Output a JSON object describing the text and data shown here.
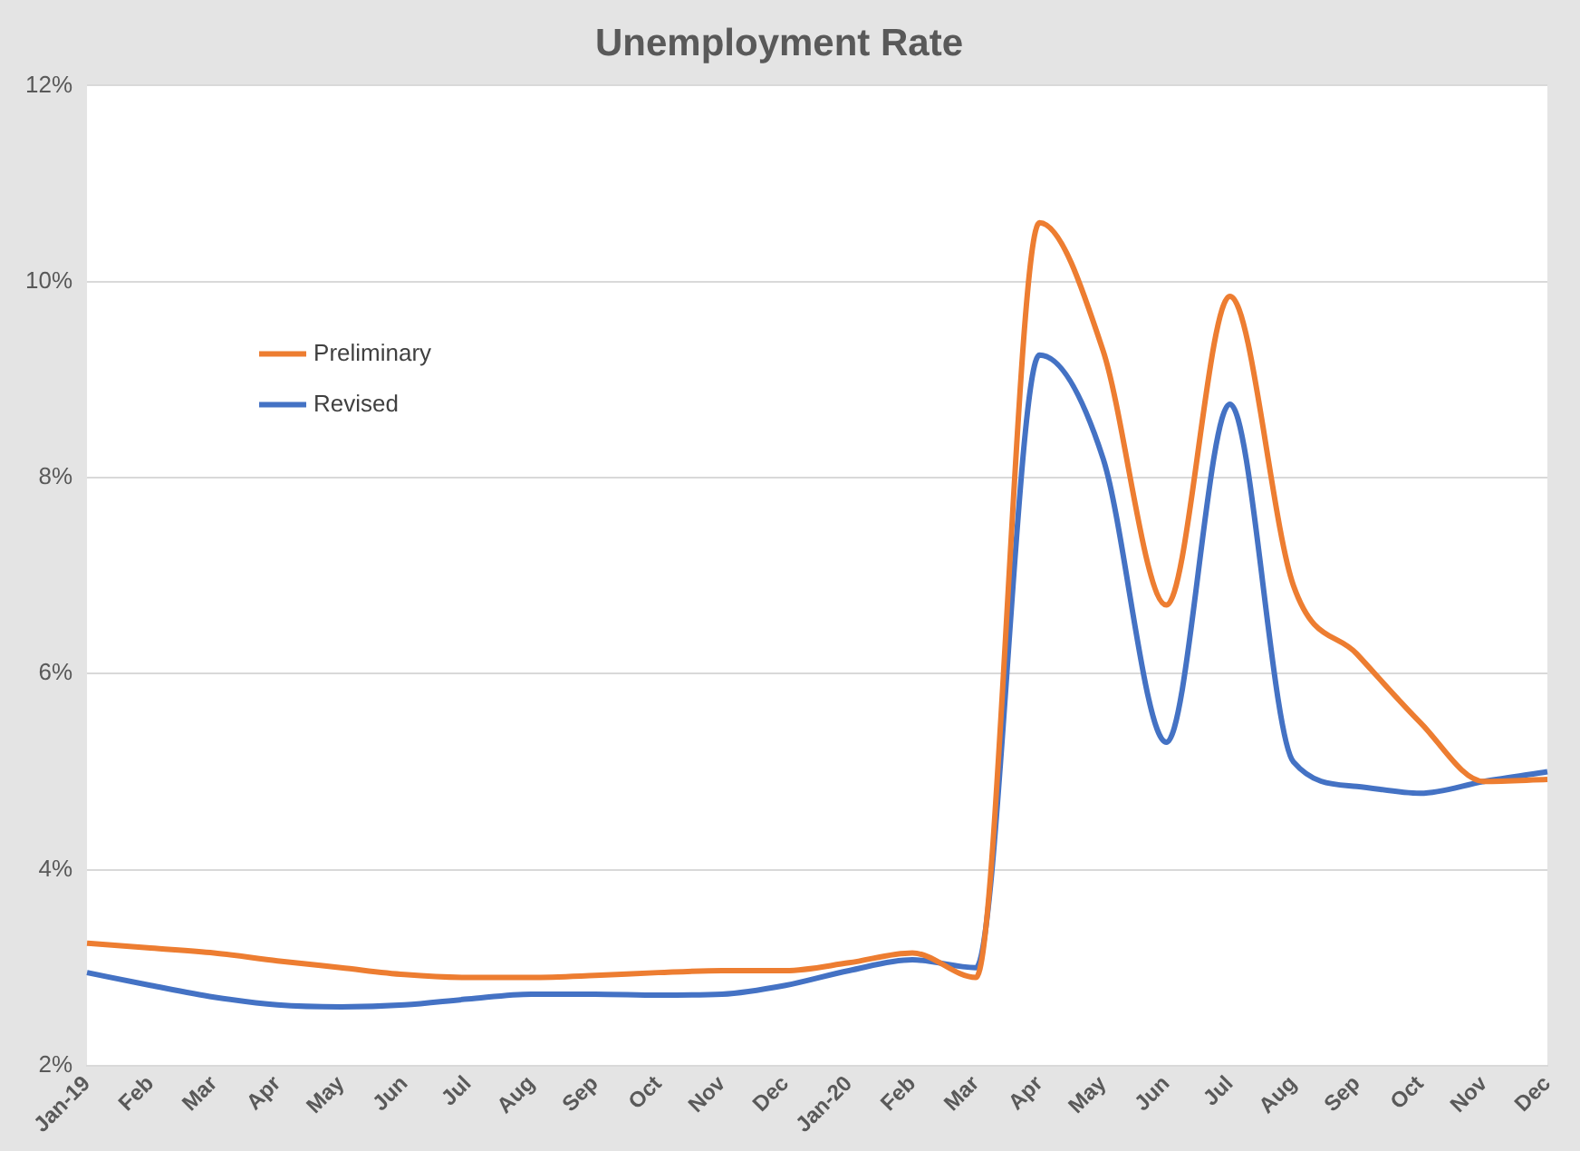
{
  "chart_data": {
    "type": "line",
    "title": "Unemployment Rate",
    "categories": [
      "Jan-19",
      "Feb",
      "Mar",
      "Apr",
      "May",
      "Jun",
      "Jul",
      "Aug",
      "Sep",
      "Oct",
      "Nov",
      "Dec",
      "Jan-20",
      "Feb",
      "Mar",
      "Apr",
      "May",
      "Jun",
      "Jul",
      "Aug",
      "Sep",
      "Oct",
      "Nov",
      "Dec"
    ],
    "series": [
      {
        "name": "Preliminary",
        "color": "#ed7d31",
        "values": [
          3.25,
          3.2,
          3.15,
          3.07,
          3.0,
          2.93,
          2.9,
          2.9,
          2.92,
          2.95,
          2.97,
          2.97,
          3.05,
          3.15,
          2.9,
          10.6,
          9.3,
          6.7,
          9.85,
          6.9,
          6.2,
          5.5,
          4.9,
          4.92
        ]
      },
      {
        "name": "Revised",
        "color": "#4472c4",
        "values": [
          2.95,
          2.82,
          2.7,
          2.62,
          2.6,
          2.62,
          2.68,
          2.73,
          2.73,
          2.72,
          2.73,
          2.82,
          2.97,
          3.08,
          3.0,
          9.25,
          8.2,
          5.3,
          8.75,
          5.1,
          4.85,
          4.78,
          4.9,
          5.0
        ]
      }
    ],
    "ylim": [
      2,
      12
    ],
    "yticks": [
      {
        "value": 2,
        "label": "2%"
      },
      {
        "value": 4,
        "label": "4%"
      },
      {
        "value": 6,
        "label": "6%"
      },
      {
        "value": 8,
        "label": "8%"
      },
      {
        "value": 10,
        "label": "10%"
      },
      {
        "value": 12,
        "label": "12%"
      }
    ],
    "grid": "y",
    "legend": "top left",
    "marker": "none",
    "line_style": "solid"
  }
}
